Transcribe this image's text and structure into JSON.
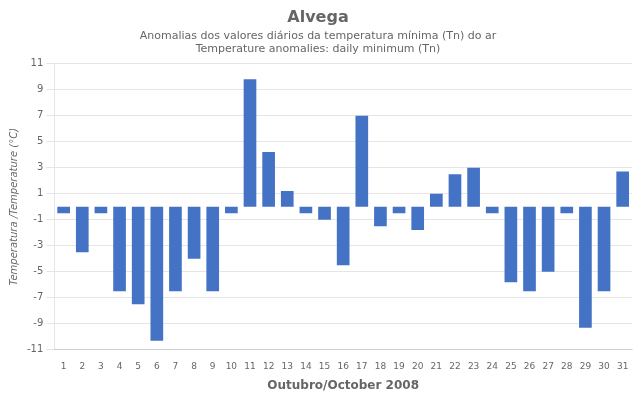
{
  "chart_data": {
    "type": "bar",
    "title": "Alvega",
    "subtitle": [
      "Anomalias dos valores diários da temperatura mínima (Tn) do ar",
      "Temperature anomalies: daily minimum (Tn)"
    ],
    "xlabel": "Outubro/October 2008",
    "ylabel": "Temperatura /Temperature (°C)",
    "categories": [
      1,
      2,
      3,
      4,
      5,
      6,
      7,
      8,
      9,
      10,
      11,
      12,
      13,
      14,
      15,
      16,
      17,
      18,
      19,
      20,
      21,
      22,
      23,
      24,
      25,
      26,
      27,
      28,
      29,
      30,
      31
    ],
    "values": [
      -0.5,
      -3.5,
      -0.5,
      -6.5,
      -7.5,
      -10.3,
      -6.5,
      -4.0,
      -6.5,
      -0.5,
      9.8,
      4.2,
      1.2,
      -0.5,
      -1.0,
      -4.5,
      7.0,
      -1.5,
      -0.5,
      -1.8,
      1.0,
      2.5,
      3.0,
      -0.5,
      -5.8,
      -6.5,
      -5.0,
      -0.5,
      -9.3,
      -6.5,
      2.7
    ],
    "color": "#4472c4",
    "ylim": [
      -11,
      11
    ],
    "yticks": [
      -11,
      -9,
      -7,
      -5,
      -3,
      -1,
      1,
      3,
      5,
      7,
      9,
      11
    ],
    "grid": true
  }
}
